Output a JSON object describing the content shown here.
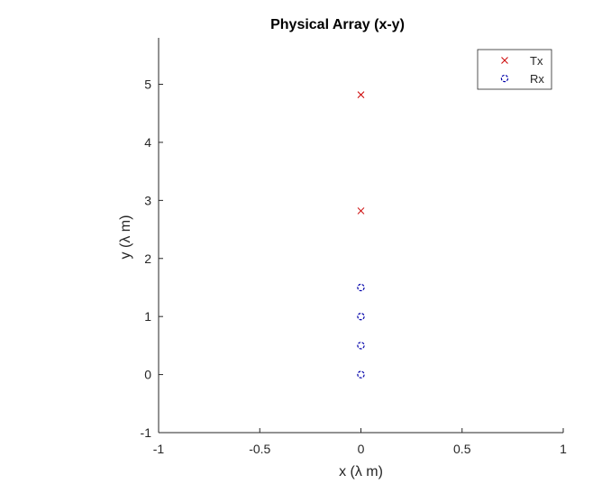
{
  "chart_data": {
    "type": "scatter",
    "title": "Physical Array (x-y)",
    "xlabel": "x (λ m)",
    "ylabel": "y (λ m)",
    "xlim": [
      -1,
      1
    ],
    "ylim": [
      -1,
      5.8
    ],
    "xticks": [
      -1,
      -0.5,
      0,
      0.5,
      1
    ],
    "xtick_labels": [
      "-1",
      "-0.5",
      "0",
      "0.5",
      "1"
    ],
    "yticks": [
      -1,
      0,
      1,
      2,
      3,
      4,
      5
    ],
    "ytick_labels": [
      "-1",
      "0",
      "1",
      "2",
      "3",
      "4",
      "5"
    ],
    "grid": false,
    "legend_position": "top-right",
    "series": [
      {
        "name": "Tx",
        "marker": "x",
        "color": "#cc0000",
        "points": [
          {
            "x": 0,
            "y": 4.82
          },
          {
            "x": 0,
            "y": 2.82
          }
        ]
      },
      {
        "name": "Rx",
        "marker": "o",
        "color": "#0000aa",
        "points": [
          {
            "x": 0,
            "y": 0
          },
          {
            "x": 0,
            "y": 0.5
          },
          {
            "x": 0,
            "y": 1.0
          },
          {
            "x": 0,
            "y": 1.5
          }
        ]
      }
    ]
  }
}
